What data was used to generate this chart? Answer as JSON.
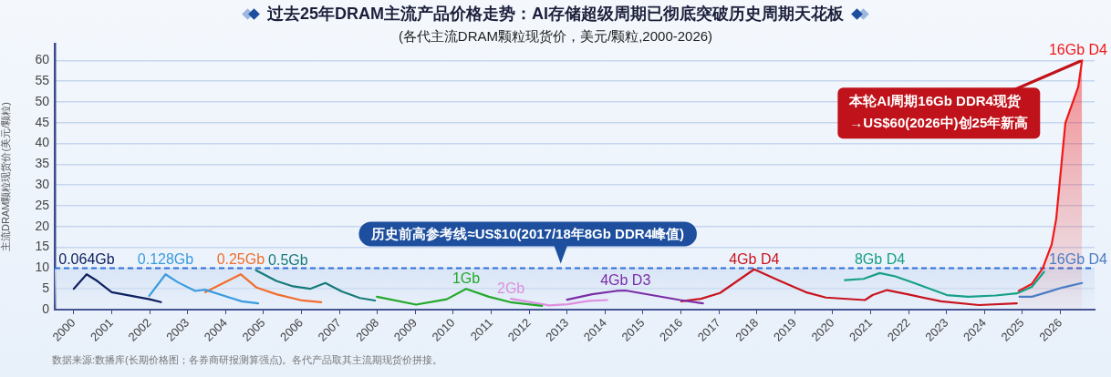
{
  "chart_data": {
    "type": "line",
    "title": "过去25年DRAM主流产品价格走势：AI存储超级周期已彻底突破历史周期天花板",
    "subtitle": "(各代主流DRAM颗粒现货价，美元/颗粒,2000-2026)",
    "ylabel": "主流DRAM颗粒现货价(美元/颗粒)",
    "xlim": [
      1999.5,
      2026.9
    ],
    "xticks": [
      2000,
      2001,
      2002,
      2003,
      2004,
      2005,
      2006,
      2007,
      2008,
      2009,
      2010,
      2011,
      2012,
      2013,
      2014,
      2015,
      2016,
      2017,
      2018,
      2019,
      2020,
      2021,
      2022,
      2023,
      2024,
      2025,
      2026
    ],
    "ylim": [
      0,
      64
    ],
    "yticks": [
      0,
      5,
      10,
      15,
      20,
      25,
      30,
      35,
      40,
      45,
      50,
      55,
      60
    ],
    "grid": "y",
    "series": [
      {
        "name": "0.064Gb",
        "color": "#0f2160",
        "x": [
          2000.0,
          2000.34,
          2000.62,
          2001.0,
          2002.0,
          2002.3
        ],
        "values": [
          5.0,
          8.5,
          6.9,
          4.2,
          2.5,
          1.8
        ]
      },
      {
        "name": "0.128Gb",
        "color": "#3a9be0",
        "x": [
          2001.99,
          2002.42,
          2002.74,
          2003.2,
          2003.46,
          2004.42,
          2004.86
        ],
        "values": [
          3.3,
          8.5,
          6.6,
          4.5,
          4.8,
          2.0,
          1.5
        ]
      },
      {
        "name": "0.25Gb",
        "color": "#f26d2d",
        "x": [
          2003.47,
          2004.4,
          2004.82,
          2005.34,
          2006.02,
          2006.52
        ],
        "values": [
          4.2,
          8.5,
          5.3,
          3.7,
          2.2,
          1.8
        ]
      },
      {
        "name": "0.5Gb",
        "color": "#167a7a",
        "x": [
          2004.8,
          2005.34,
          2005.78,
          2006.23,
          2006.63,
          2007.06,
          2007.54,
          2007.94
        ],
        "values": [
          9.5,
          6.9,
          5.6,
          5.0,
          6.4,
          4.4,
          2.8,
          2.2
        ]
      },
      {
        "name": "1Gb",
        "color": "#22a82a",
        "x": [
          2007.99,
          2009.02,
          2009.83,
          2010.34,
          2010.94,
          2011.5,
          2012.34
        ],
        "values": [
          3.1,
          1.2,
          2.5,
          5.0,
          3.1,
          1.8,
          0.9
        ]
      },
      {
        "name": "2Gb",
        "color": "#dd8fdd",
        "x": [
          2011.52,
          2012.53,
          2013.01,
          2013.58,
          2014.06
        ],
        "values": [
          2.6,
          1.0,
          1.3,
          2.1,
          2.3
        ]
      },
      {
        "name": "4Gb D3",
        "color": "#7a2ea6",
        "x": [
          2013.0,
          2013.66,
          2014.3,
          2014.54,
          2015.98,
          2016.58
        ],
        "values": [
          2.4,
          3.7,
          4.5,
          4.6,
          2.3,
          1.5
        ]
      },
      {
        "name": "4Gb D4",
        "color": "#c8141e",
        "x": [
          2016.01,
          2016.53,
          2017.03,
          2017.93,
          2018.61,
          2019.29,
          2019.82,
          2020.85,
          2021.05,
          2021.43,
          2021.97,
          2022.85,
          2023.85,
          2024.85
        ],
        "values": [
          2.0,
          2.6,
          4.0,
          9.7,
          6.9,
          4.2,
          2.9,
          2.3,
          3.5,
          4.7,
          3.7,
          2.0,
          1.1,
          1.5
        ]
      },
      {
        "name": "8Gb D4",
        "color": "#16a088",
        "x": [
          2020.32,
          2020.81,
          2021.24,
          2021.65,
          2022.21,
          2023.01,
          2023.57,
          2024.29,
          2024.85,
          2025.25,
          2025.57
        ],
        "values": [
          7.1,
          7.4,
          8.8,
          8.0,
          6.2,
          3.5,
          3.1,
          3.4,
          3.9,
          5.5,
          9.1
        ]
      },
      {
        "name": "16Gb D4",
        "color": "#4a7dc4",
        "x": [
          2024.92,
          2025.25,
          2025.73,
          2026.05,
          2026.57
        ],
        "values": [
          3.1,
          3.1,
          4.4,
          5.3,
          6.4
        ]
      },
      {
        "name": "16Gb D4",
        "type": "area",
        "color": "#f01818",
        "x": [
          2024.9,
          2025.25,
          2025.53,
          2025.77,
          2025.89,
          2026.13,
          2026.47,
          2026.57
        ],
        "values": [
          4.5,
          6.2,
          9.9,
          15.7,
          21.9,
          44.9,
          53.6,
          60.0
        ]
      }
    ],
    "ref_lines": [
      {
        "axis": "y",
        "value": 10,
        "label": "历史前高参考线≈US$10(2017/18年8Gb DDR4峰值)",
        "color": "#2f6fd6",
        "line_style": "dashed"
      }
    ],
    "bands": [
      {
        "axis": "y",
        "from": 0,
        "to": 10,
        "color": "#d6e3f5"
      }
    ],
    "annotations": [
      {
        "text": "本轮AI周期16Gb DDR4现货\n→US$60(2026中)创25年新高",
        "x": 2026.57,
        "y": 60
      },
      "数据来源:数播库(长期价格图；各券商研报测算强点)。各代产品取其主流期现货价拼接。"
    ]
  }
}
